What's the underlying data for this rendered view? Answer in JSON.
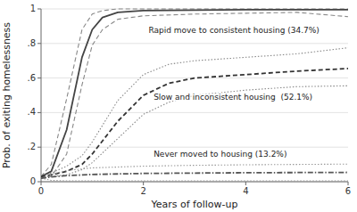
{
  "chart_data": {
    "type": "line",
    "x_label": "Years of follow-up",
    "y_label": "Prob. of exiting homelessness",
    "xlim": [
      0,
      6
    ],
    "ylim": [
      0,
      1
    ],
    "xticks": [
      0,
      2,
      4,
      6
    ],
    "yticks": [
      0,
      {
        "value": 0.2,
        "label": ".2"
      },
      {
        "value": 0.4,
        "label": ".4"
      },
      {
        "value": 0.6,
        "label": ".6"
      },
      {
        "value": 0.8,
        "label": ".8"
      },
      1
    ],
    "grid": true,
    "series": [
      {
        "color": "#888888",
        "line_style": "dashed",
        "x": [
          0,
          0.2,
          0.5,
          0.8,
          1.0,
          1.2,
          1.5,
          2.0,
          3.0,
          4.0,
          5.0,
          6.0
        ],
        "values": [
          0.03,
          0.1,
          0.48,
          0.88,
          0.97,
          0.99,
          1.0,
          1.0,
          1.0,
          1.0,
          1.0,
          1.0
        ]
      },
      {
        "color": "#888888",
        "line_style": "dashed",
        "x": [
          0,
          0.2,
          0.5,
          0.8,
          1.0,
          1.2,
          1.5,
          2.0,
          3.0,
          4.0,
          5.0,
          6.0
        ],
        "values": [
          0.03,
          0.03,
          0.16,
          0.56,
          0.79,
          0.88,
          0.94,
          0.96,
          0.97,
          0.975,
          0.98,
          0.955
        ]
      },
      {
        "color": "#444444",
        "line_style": "solid",
        "x": [
          0,
          0.2,
          0.5,
          0.8,
          1.0,
          1.2,
          1.5,
          2.0,
          3.0,
          4.0,
          5.0,
          6.0
        ],
        "values": [
          0.03,
          0.06,
          0.3,
          0.72,
          0.88,
          0.95,
          0.98,
          0.99,
          0.993,
          0.995,
          0.996,
          0.996
        ]
      },
      {
        "color": "#888888",
        "line_style": "dotted",
        "x": [
          0,
          0.2,
          0.5,
          0.8,
          1.0,
          1.5,
          2.0,
          2.5,
          3.0,
          4.0,
          5.0,
          6.0
        ],
        "values": [
          0.03,
          0.05,
          0.09,
          0.15,
          0.23,
          0.47,
          0.62,
          0.68,
          0.7,
          0.72,
          0.74,
          0.775
        ]
      },
      {
        "color": "#888888",
        "line_style": "dotted",
        "x": [
          0,
          0.2,
          0.5,
          0.8,
          1.0,
          1.5,
          2.0,
          2.5,
          3.0,
          4.0,
          5.0,
          6.0
        ],
        "values": [
          0.03,
          0.03,
          0.04,
          0.07,
          0.11,
          0.25,
          0.39,
          0.46,
          0.5,
          0.53,
          0.55,
          0.555
        ]
      },
      {
        "color": "#333333",
        "line_style": "dashed",
        "x": [
          0,
          0.2,
          0.5,
          0.8,
          1.0,
          1.5,
          2.0,
          2.5,
          3.0,
          4.0,
          5.0,
          6.0
        ],
        "values": [
          0.03,
          0.04,
          0.06,
          0.1,
          0.16,
          0.35,
          0.5,
          0.57,
          0.6,
          0.62,
          0.64,
          0.655
        ]
      },
      {
        "color": "#999999",
        "line_style": "dotted",
        "x": [
          0,
          0.2,
          0.5,
          1.0,
          2.0,
          3.0,
          4.0,
          5.0,
          6.0
        ],
        "values": [
          0.02,
          0.042,
          0.065,
          0.08,
          0.09,
          0.095,
          0.098,
          0.1,
          0.102
        ]
      },
      {
        "color": "#999999",
        "line_style": "dotted",
        "x": [
          0,
          0.2,
          0.5,
          1.0,
          2.0,
          3.0,
          4.0,
          5.0,
          6.0
        ],
        "values": [
          0.02,
          0.008,
          0.005,
          0.005,
          0.005,
          0.005,
          0.005,
          0.005,
          0.005
        ]
      },
      {
        "color": "#555555",
        "line_style": "dashdot",
        "x": [
          0,
          0.2,
          0.5,
          1.0,
          2.0,
          3.0,
          4.0,
          5.0,
          6.0
        ],
        "values": [
          0.02,
          0.028,
          0.035,
          0.042,
          0.048,
          0.05,
          0.052,
          0.053,
          0.054
        ]
      }
    ],
    "annotations": [
      {
        "text": "Rapid move to consistent housing (34.7%)",
        "x": 2.1,
        "y": 0.875
      },
      {
        "text": "Slow and inconsistent housing  (52.1%)",
        "x": 2.2,
        "y": 0.485
      },
      {
        "text": "Never moved to housing (13.2%)",
        "x": 2.2,
        "y": 0.155
      }
    ]
  }
}
